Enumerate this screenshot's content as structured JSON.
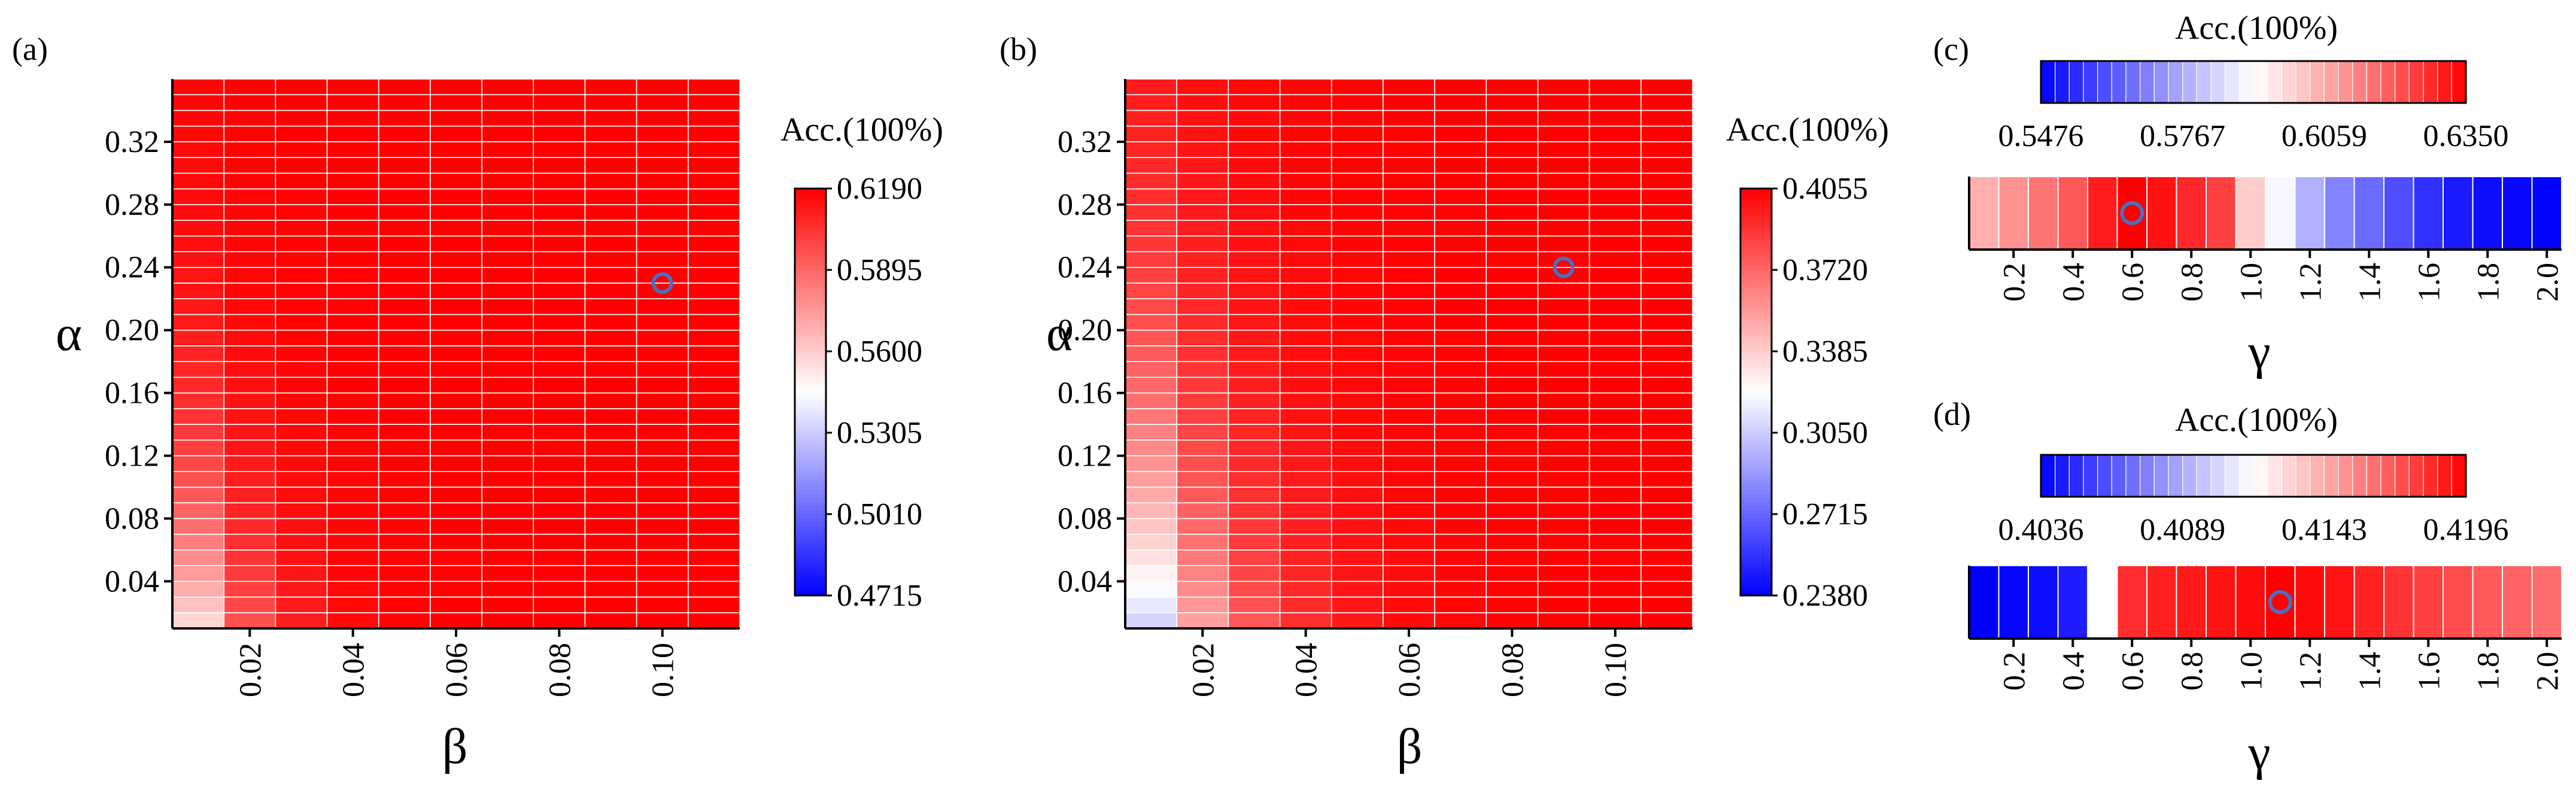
{
  "colors": {
    "low": "#0000ff",
    "mid": "#ffffff",
    "high": "#ff0000",
    "marker": "#4472c4",
    "grid": "#ffffff"
  },
  "chart_data": [
    {
      "id": "a",
      "type": "heatmap",
      "panel_label": "(a)",
      "xlabel": "β",
      "ylabel": "α",
      "x_range": [
        0.005,
        0.115
      ],
      "y_range": [
        0.01,
        0.36
      ],
      "x_ticks": [
        "0.02",
        "0.04",
        "0.06",
        "0.08",
        "0.10"
      ],
      "y_ticks": [
        "0.04",
        "0.08",
        "0.12",
        "0.16",
        "0.20",
        "0.24",
        "0.28",
        "0.32"
      ],
      "grid_cols": 11,
      "grid_rows": 35,
      "colorbar": {
        "title": "Acc.(100%)",
        "orientation": "vertical",
        "min": 0.4715,
        "max": 0.619,
        "labels": [
          "0.6190",
          "0.5895",
          "0.5600",
          "0.5305",
          "0.5010",
          "0.4715"
        ]
      },
      "best": {
        "beta": 0.1,
        "alpha": 0.23
      }
    },
    {
      "id": "b",
      "type": "heatmap",
      "panel_label": "(b)",
      "xlabel": "β",
      "ylabel": "α",
      "x_range": [
        0.005,
        0.115
      ],
      "y_range": [
        0.01,
        0.36
      ],
      "x_ticks": [
        "0.02",
        "0.04",
        "0.06",
        "0.08",
        "0.10"
      ],
      "y_ticks": [
        "0.04",
        "0.08",
        "0.12",
        "0.16",
        "0.20",
        "0.24",
        "0.28",
        "0.32"
      ],
      "grid_cols": 11,
      "grid_rows": 35,
      "colorbar": {
        "title": "Acc.(100%)",
        "orientation": "vertical",
        "min": 0.238,
        "max": 0.4055,
        "labels": [
          "0.4055",
          "0.3720",
          "0.3385",
          "0.3050",
          "0.2715",
          "0.2380"
        ]
      },
      "best": {
        "beta": 0.09,
        "alpha": 0.24
      }
    },
    {
      "id": "c",
      "type": "heatmap",
      "panel_label": "(c)",
      "xlabel": "γ",
      "x": [
        0.1,
        0.2,
        0.3,
        0.4,
        0.5,
        0.6,
        0.7,
        0.8,
        0.9,
        1.0,
        1.1,
        1.2,
        1.3,
        1.4,
        1.5,
        1.6,
        1.7,
        1.8,
        1.9,
        2.0
      ],
      "values": [
        0.605,
        0.61,
        0.615,
        0.62,
        0.63,
        0.635,
        0.632,
        0.628,
        0.624,
        0.6,
        0.59,
        0.578,
        0.57,
        0.566,
        0.561,
        0.556,
        0.552,
        0.55,
        0.549,
        0.548
      ],
      "x_ticks": [
        "0.2",
        "0.4",
        "0.6",
        "0.8",
        "1.0",
        "1.2",
        "1.4",
        "1.6",
        "1.8",
        "2.0"
      ],
      "colorbar": {
        "title": "Acc.(100%)",
        "orientation": "horizontal",
        "min": 0.5476,
        "max": 0.635,
        "labels": [
          "0.5476",
          "0.5767",
          "0.6059",
          "0.6350"
        ]
      },
      "best": {
        "gamma": 0.6
      }
    },
    {
      "id": "d",
      "type": "heatmap",
      "panel_label": "(d)",
      "xlabel": "γ",
      "x": [
        0.1,
        0.2,
        0.3,
        0.4,
        0.5,
        0.6,
        0.7,
        0.8,
        0.9,
        1.0,
        1.1,
        1.2,
        1.3,
        1.4,
        1.5,
        1.6,
        1.7,
        1.8,
        1.9,
        2.0
      ],
      "values": [
        0.4036,
        0.4038,
        0.404,
        0.4045,
        0.4116,
        0.4182,
        0.4186,
        0.4188,
        0.419,
        0.4192,
        0.4196,
        0.4193,
        0.419,
        0.4185,
        0.418,
        0.4176,
        0.4172,
        0.4168,
        0.4165,
        0.4162
      ],
      "x_ticks": [
        "0.2",
        "0.4",
        "0.6",
        "0.8",
        "1.0",
        "1.2",
        "1.4",
        "1.6",
        "1.8",
        "2.0"
      ],
      "colorbar": {
        "title": "Acc.(100%)",
        "orientation": "horizontal",
        "min": 0.4036,
        "max": 0.4196,
        "labels": [
          "0.4036",
          "0.4089",
          "0.4143",
          "0.4196"
        ]
      },
      "best": {
        "gamma": 1.1
      }
    }
  ]
}
